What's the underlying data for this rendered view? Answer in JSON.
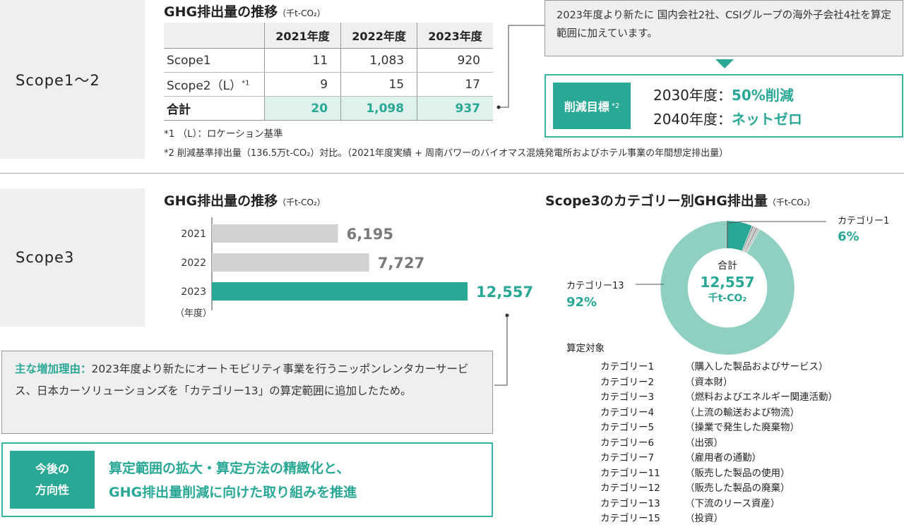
{
  "scope12": {
    "label": "Scope1〜2",
    "title": "GHG排出量の推移",
    "unit": "（千t-CO₂）",
    "table": {
      "columns": [
        "2021年度",
        "2022年度",
        "2023年度"
      ],
      "rows": [
        {
          "label": "Scope1",
          "note": "",
          "values": [
            "11",
            "1,083",
            "920"
          ]
        },
        {
          "label": "Scope2（L）",
          "note": "*1",
          "values": [
            "9",
            "15",
            "17"
          ]
        },
        {
          "label": "合計",
          "note": "",
          "values": [
            "20",
            "1,098",
            "937"
          ]
        }
      ]
    },
    "note1": "*1 （L）：ロケーション基準",
    "note2": "*2 削減基準排出量（136.5万t-CO₂）対比。（2021年度実績 + 周南パワーのバイオマス混焼発電所およびホテル事業の年間想定排出量）",
    "callout": "2023年度より新たに 国内会社2社、CSIグループの海外子会社4社を算定範囲に加えています。",
    "target": {
      "label": "削減目標",
      "label_note": "*2",
      "line1_year": "2030年度：",
      "line1_value": "50%削減",
      "line2_year": "2040年度：",
      "line2_value": "ネットゼロ"
    }
  },
  "scope3": {
    "label": "Scope3",
    "bar_title": "GHG排出量の推移",
    "bar_unit": "（千t-CO₂）",
    "year_axis_label": "（年度）",
    "donut_title": "Scope3のカテゴリー別GHG排出量",
    "donut_unit": "（千t-CO₂）",
    "donut_center_label": "合計",
    "donut_center_value": "12,557",
    "donut_center_unit": "千t-CO₂",
    "donut_label_cat1": "カテゴリー1",
    "donut_label_cat1_pct": "6%",
    "donut_label_cat13": "カテゴリー13",
    "donut_label_cat13_pct": "92%",
    "scope_heading": "算定対象",
    "categories": [
      {
        "name": "カテゴリー1",
        "desc": "（購入した製品およびサービス）"
      },
      {
        "name": "カテゴリー2",
        "desc": "（資本財）"
      },
      {
        "name": "カテゴリー3",
        "desc": "（燃料およびエネルギー関連活動）"
      },
      {
        "name": "カテゴリー4",
        "desc": "（上流の輸送および物流）"
      },
      {
        "name": "カテゴリー5",
        "desc": "（操業で発生した廃棄物）"
      },
      {
        "name": "カテゴリー6",
        "desc": "（出張）"
      },
      {
        "name": "カテゴリー7",
        "desc": "（雇用者の通勤）"
      },
      {
        "name": "カテゴリー11",
        "desc": "（販売した製品の使用）"
      },
      {
        "name": "カテゴリー12",
        "desc": "（販売した製品の廃棄）"
      },
      {
        "name": "カテゴリー13",
        "desc": "（下流のリース資産）"
      },
      {
        "name": "カテゴリー15",
        "desc": "（投資）"
      }
    ],
    "reason_label": "主な増加理由：",
    "reason_text": "2023年度より新たにオートモビリティ事業を行うニッポンレンタカーサービス、日本カーソリューションズを「カテゴリー13」の算定範囲に追加したため。",
    "direction_label_line1": "今後の",
    "direction_label_line2": "方向性",
    "direction_line1": "算定範囲の拡大・算定方法の精緻化と、",
    "direction_line2": "GHG排出量削減に向けた取り組みを推進"
  },
  "colors": {
    "teal": "#2aa896",
    "teal_light": "#8fd0c2",
    "gray_bar": "#d2d2d2",
    "box_gray": "#efefef"
  },
  "chart_data": [
    {
      "type": "bar",
      "title": "GHG排出量の推移",
      "unit": "千t-CO₂",
      "orientation": "horizontal",
      "categories": [
        "2021",
        "2022",
        "2023"
      ],
      "values": [
        6195,
        7727,
        12557
      ],
      "value_labels": [
        "6,195",
        "7,727",
        "12,557"
      ],
      "ylabel": "（年度）",
      "xlim": [
        0,
        12557
      ],
      "highlight": "2023"
    },
    {
      "type": "pie",
      "title": "Scope3のカテゴリー別GHG排出量",
      "unit": "千t-CO₂",
      "donut": true,
      "total": 12557,
      "slices": [
        {
          "label": "カテゴリー1",
          "percent": 6
        },
        {
          "label": "カテゴリー13",
          "percent": 92
        }
      ]
    }
  ]
}
